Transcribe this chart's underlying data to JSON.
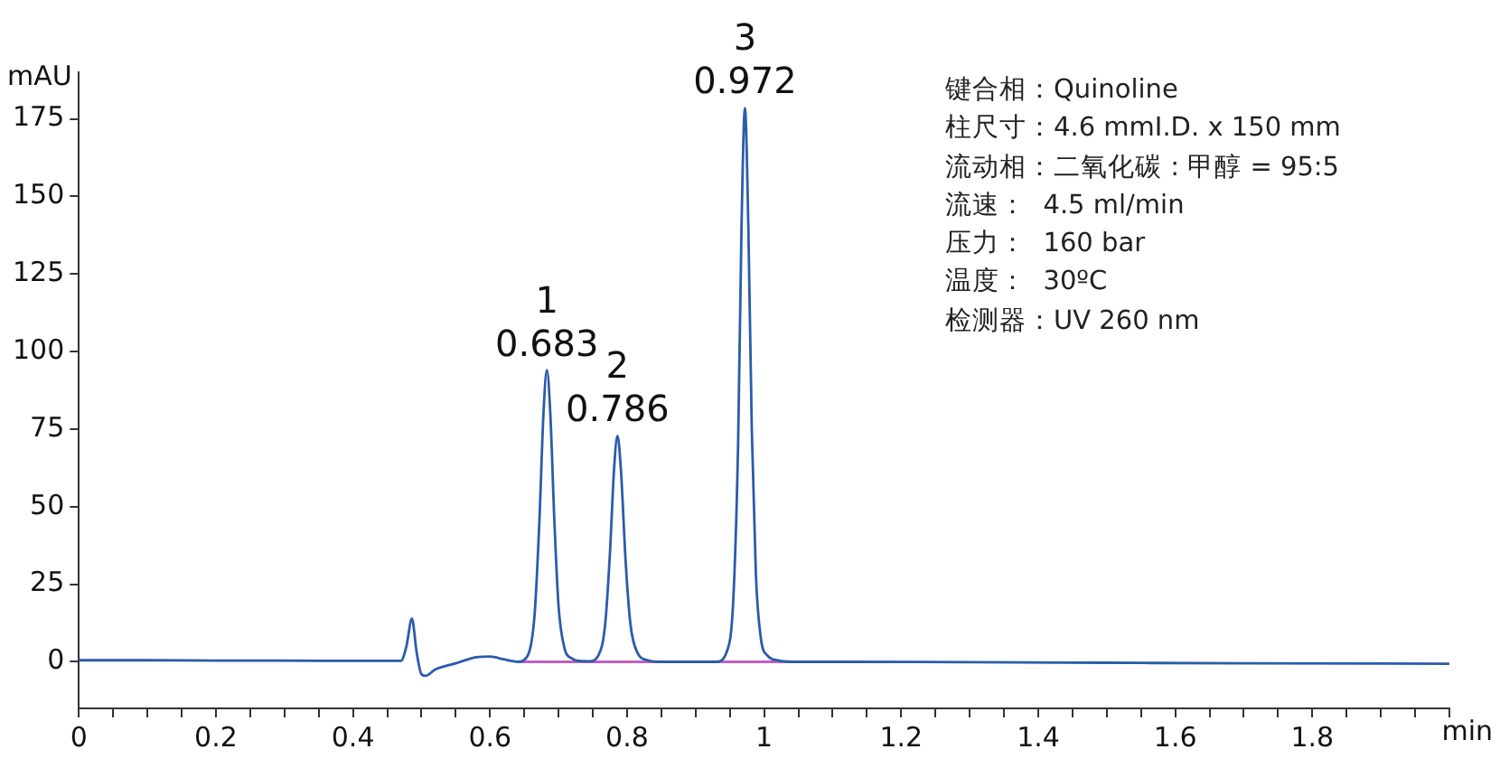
{
  "chart_data": {
    "type": "line",
    "xlabel": "min",
    "ylabel": "mAU",
    "xlim": [
      0,
      2
    ],
    "ylim": [
      -15,
      190
    ],
    "xticks": [
      0,
      {
        "value": 0.05,
        "label": null
      },
      0.2,
      {
        "value": 0.1,
        "label": null
      },
      {
        "value": 0.15,
        "label": null
      },
      {
        "value": 0.25,
        "label": null
      },
      {
        "value": 0.3,
        "label": null
      },
      {
        "value": 0.35,
        "label": null
      },
      0.4,
      {
        "value": 0.45,
        "label": null
      },
      {
        "value": 0.5,
        "label": null
      },
      {
        "value": 0.55,
        "label": null
      },
      0.6,
      {
        "value": 0.65,
        "label": null
      },
      {
        "value": 0.7,
        "label": null
      },
      {
        "value": 0.75,
        "label": null
      },
      0.8,
      {
        "value": 0.85,
        "label": null
      },
      {
        "value": 0.9,
        "label": null
      },
      {
        "value": 0.95,
        "label": null
      },
      1,
      {
        "value": 1.05,
        "label": null
      },
      {
        "value": 1.1,
        "label": null
      },
      {
        "value": 1.15,
        "label": null
      },
      1.2,
      {
        "value": 1.25,
        "label": null
      },
      {
        "value": 1.3,
        "label": null
      },
      {
        "value": 1.35,
        "label": null
      },
      1.4,
      {
        "value": 1.45,
        "label": null
      },
      {
        "value": 1.5,
        "label": null
      },
      {
        "value": 1.55,
        "label": null
      },
      1.6,
      {
        "value": 1.65,
        "label": null
      },
      {
        "value": 1.7,
        "label": null
      },
      {
        "value": 1.75,
        "label": null
      },
      1.8,
      {
        "value": 1.85,
        "label": null
      },
      {
        "value": 1.9,
        "label": null
      },
      {
        "value": 1.95,
        "label": null
      },
      {
        "value": 2,
        "label": null
      }
    ],
    "yticks": [
      0,
      25,
      50,
      75,
      100,
      125,
      150,
      175
    ],
    "grid": false,
    "legend": false,
    "marker": "none",
    "line_style": "solid",
    "series": [
      {
        "color": "#2a5caa",
        "x": [
          0,
          0.1,
          0.2,
          0.3,
          0.4,
          0.47,
          0.478,
          0.486,
          0.493,
          0.5,
          0.506,
          0.52,
          0.55,
          0.58,
          0.6,
          0.62,
          0.63,
          0.64,
          0.655,
          0.665,
          0.672,
          0.678,
          0.683,
          0.688,
          0.694,
          0.7,
          0.708,
          0.72,
          0.73,
          0.745,
          0.758,
          0.768,
          0.775,
          0.781,
          0.786,
          0.791,
          0.798,
          0.805,
          0.815,
          0.83,
          0.85,
          0.93,
          0.945,
          0.955,
          0.962,
          0.967,
          0.972,
          0.977,
          0.982,
          0.988,
          0.995,
          1.005,
          1.02,
          1.05,
          1.1,
          1.3,
          1.5,
          1.7,
          2
        ],
        "values": [
          0.5,
          0.5,
          0.4,
          0.4,
          0.3,
          0.3,
          5,
          13.9,
          3,
          -4,
          -4.5,
          -2.5,
          -0.5,
          1.5,
          1.7,
          0.8,
          0.3,
          0,
          2,
          15,
          45,
          80,
          94,
          80,
          45,
          18,
          5,
          1,
          0.3,
          0.2,
          2,
          12,
          35,
          62,
          72.8,
          62,
          32,
          12,
          3,
          0.5,
          0,
          0,
          3,
          20,
          70,
          140,
          178.5,
          140,
          75,
          28,
          8,
          2,
          0.5,
          0,
          0,
          -0.1,
          -0.3,
          -0.5,
          -0.6
        ]
      },
      {
        "color": "#c060c0",
        "x": [
          0.643,
          1.06
        ],
        "values": [
          0,
          0
        ]
      }
    ],
    "annotations": [
      {
        "text": "1",
        "x": 0.683,
        "y": 94
      },
      {
        "text": "0.683",
        "x": 0.683,
        "y": 94
      },
      {
        "text": "2",
        "x": 0.786,
        "y": 72.8
      },
      {
        "text": "0.786",
        "x": 0.786,
        "y": 72.8
      },
      {
        "text": "3",
        "x": 0.972,
        "y": 178.5
      },
      {
        "text": "0.972",
        "x": 0.972,
        "y": 178.5
      },
      "键合相：Quinoline",
      "柱尺寸：4.6 mmI.D. x 150 mm",
      "流动相：二氧化碳 : 甲醇 = 95:5",
      "流速：  4.5 ml/min",
      "压力：  160 bar",
      "温度：  30ºC",
      "检测器：UV 260 nm"
    ]
  }
}
